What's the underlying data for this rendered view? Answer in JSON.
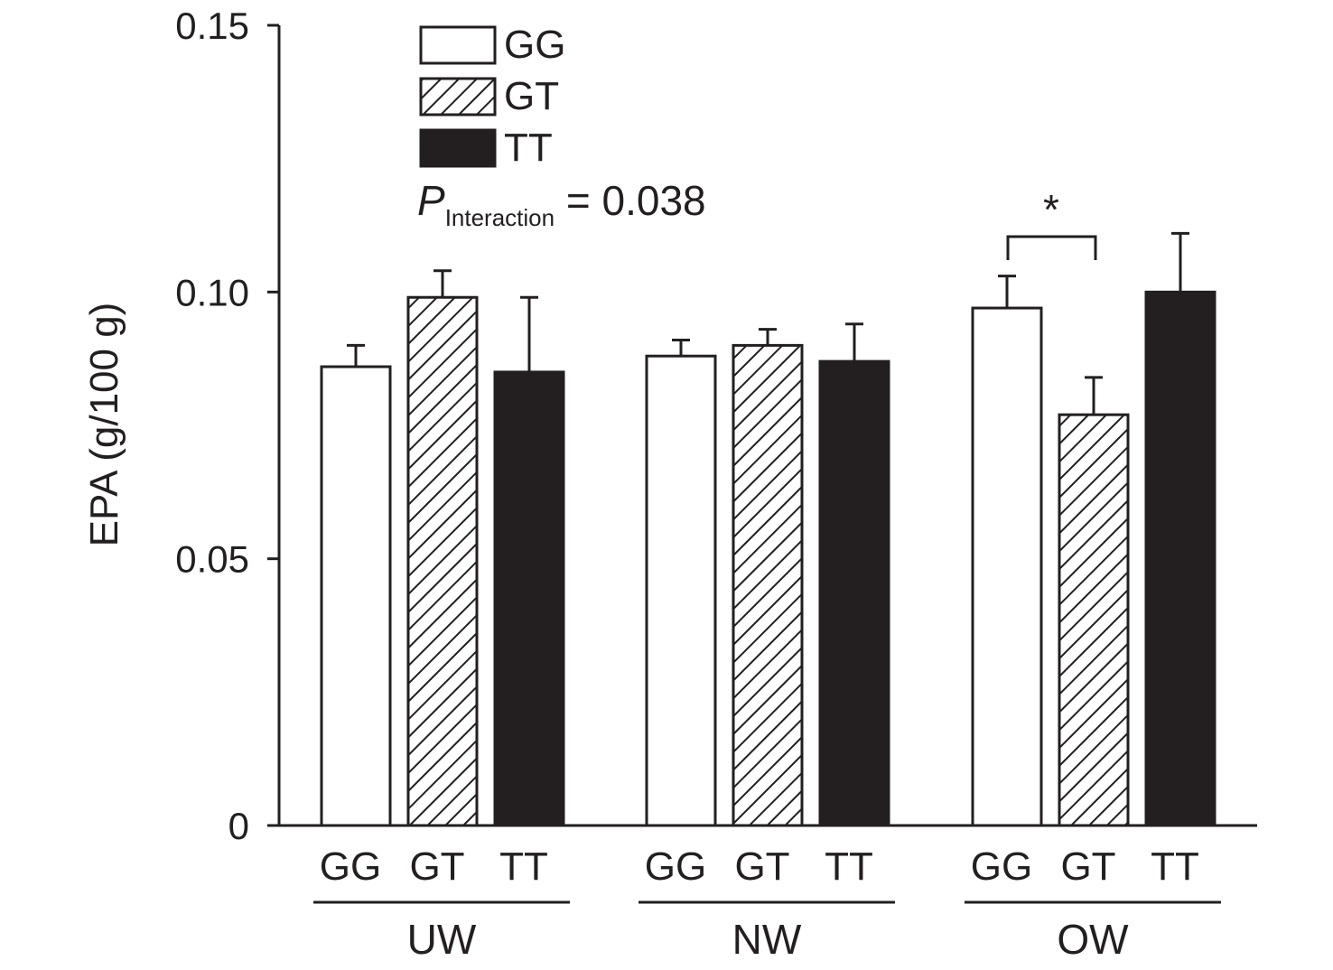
{
  "chart_data": {
    "type": "bar",
    "ylabel": "EPA (g/100 g)",
    "ylim": [
      0,
      0.15
    ],
    "yticks": [
      0,
      0.05,
      0.1,
      0.15
    ],
    "ytick_labels": [
      "0",
      "0.05",
      "0.10",
      "0.15"
    ],
    "groups": [
      {
        "name": "UW",
        "categories": [
          "GG",
          "GT",
          "TT"
        ],
        "values": [
          0.086,
          0.099,
          0.085
        ],
        "errors": [
          0.004,
          0.005,
          0.014
        ]
      },
      {
        "name": "NW",
        "categories": [
          "GG",
          "GT",
          "TT"
        ],
        "values": [
          0.088,
          0.09,
          0.087
        ],
        "errors": [
          0.003,
          0.003,
          0.007
        ]
      },
      {
        "name": "OW",
        "categories": [
          "GG",
          "GT",
          "TT"
        ],
        "values": [
          0.097,
          0.077,
          0.1
        ],
        "errors": [
          0.006,
          0.007,
          0.011
        ]
      }
    ],
    "legend": {
      "position": "top-left",
      "entries": [
        {
          "label": "GG",
          "fill": "white"
        },
        {
          "label": "GT",
          "fill": "hatched"
        },
        {
          "label": "TT",
          "fill": "black"
        }
      ]
    },
    "annotation": {
      "p_main": "P",
      "p_sub": "Interaction",
      "p_value": " = 0.038"
    },
    "significance": {
      "group": "OW",
      "between": [
        "GG",
        "GT"
      ],
      "marker": "*"
    },
    "colors": {
      "bar_dark": "#231f20",
      "bar_light": "#ffffff",
      "line": "#231f20"
    }
  }
}
